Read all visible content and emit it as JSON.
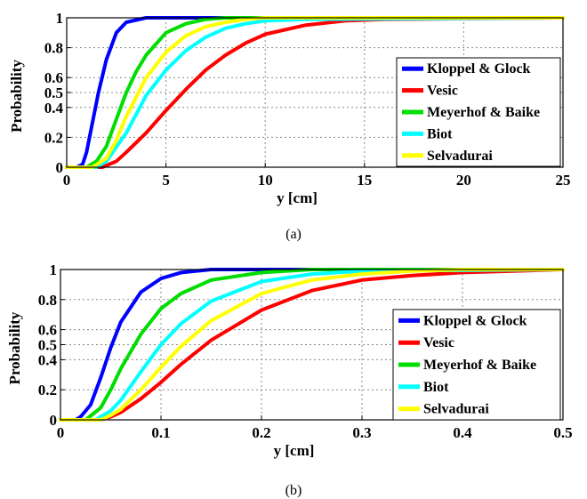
{
  "chart_data": [
    {
      "type": "line",
      "caption": "(a)",
      "xlabel": "y [cm]",
      "ylabel": "Probability",
      "xlim": [
        0,
        25
      ],
      "ylim": [
        0,
        1
      ],
      "xticks": [
        "0",
        "5",
        "10",
        "15",
        "20",
        "25"
      ],
      "yticks": [
        "0",
        "0.2",
        "0.4",
        "0.5",
        "0.6",
        "0.8",
        "1"
      ],
      "grid": true,
      "legend_position": "right",
      "series": [
        {
          "name": "Kloppel & Glock",
          "color": "#0000ff",
          "x": [
            0,
            0.5,
            0.8,
            1.0,
            1.3,
            1.6,
            2.0,
            2.5,
            3.0,
            4.0,
            5.0,
            25
          ],
          "y": [
            0,
            0.0,
            0.02,
            0.1,
            0.3,
            0.5,
            0.72,
            0.9,
            0.97,
            1.0,
            1.0,
            1.0
          ]
        },
        {
          "name": "Vesic",
          "color": "#ff0000",
          "x": [
            0,
            1.8,
            2.5,
            3.0,
            4.0,
            5.0,
            6.0,
            7.0,
            8.0,
            9.0,
            10.0,
            12.0,
            14.0,
            16.0,
            25
          ],
          "y": [
            0,
            0.0,
            0.04,
            0.1,
            0.23,
            0.38,
            0.52,
            0.65,
            0.75,
            0.83,
            0.89,
            0.95,
            0.98,
            0.99,
            1.0
          ]
        },
        {
          "name": "Meyerhof & Baike",
          "color": "#00dd00",
          "x": [
            0,
            1.0,
            1.5,
            2.0,
            2.5,
            3.0,
            3.5,
            4.0,
            5.0,
            6.0,
            7.0,
            8.0,
            25
          ],
          "y": [
            0,
            0.0,
            0.04,
            0.14,
            0.32,
            0.5,
            0.64,
            0.75,
            0.9,
            0.96,
            0.99,
            1.0,
            1.0
          ]
        },
        {
          "name": "Biot",
          "color": "#00ffff",
          "x": [
            0,
            1.5,
            2.0,
            3.0,
            4.0,
            5.0,
            6.0,
            7.0,
            8.0,
            9.0,
            10.0,
            12.0,
            25
          ],
          "y": [
            0,
            0.0,
            0.04,
            0.23,
            0.48,
            0.65,
            0.78,
            0.87,
            0.93,
            0.96,
            0.98,
            0.99,
            1.0
          ]
        },
        {
          "name": "Selvadurai",
          "color": "#ffff00",
          "x": [
            0,
            1.3,
            2.0,
            2.5,
            3.0,
            4.0,
            5.0,
            6.0,
            7.0,
            8.0,
            9.0,
            10.0,
            25
          ],
          "y": [
            0,
            0.0,
            0.06,
            0.18,
            0.34,
            0.6,
            0.77,
            0.88,
            0.94,
            0.97,
            0.99,
            1.0,
            1.0
          ]
        }
      ]
    },
    {
      "type": "line",
      "caption": "(b)",
      "xlabel": "y [cm]",
      "ylabel": "Probability",
      "xlim": [
        0,
        0.5
      ],
      "ylim": [
        0,
        1
      ],
      "xticks": [
        "0",
        "0.1",
        "0.2",
        "0.3",
        "0.4",
        "0.5"
      ],
      "yticks": [
        "0",
        "0.2",
        "0.4",
        "0.5",
        "0.6",
        "0.8",
        "1"
      ],
      "grid": true,
      "legend_position": "right",
      "series": [
        {
          "name": "Kloppel & Glock",
          "color": "#0000ff",
          "x": [
            0,
            0.015,
            0.02,
            0.03,
            0.04,
            0.05,
            0.06,
            0.08,
            0.1,
            0.12,
            0.15,
            0.5
          ],
          "y": [
            0,
            0.0,
            0.02,
            0.1,
            0.28,
            0.48,
            0.65,
            0.85,
            0.94,
            0.98,
            1.0,
            1.0
          ]
        },
        {
          "name": "Vesic",
          "color": "#ff0000",
          "x": [
            0,
            0.04,
            0.05,
            0.06,
            0.08,
            0.1,
            0.12,
            0.15,
            0.2,
            0.25,
            0.3,
            0.35,
            0.4,
            0.45,
            0.5
          ],
          "y": [
            0,
            0.0,
            0.02,
            0.05,
            0.14,
            0.25,
            0.37,
            0.53,
            0.73,
            0.86,
            0.93,
            0.96,
            0.98,
            0.99,
            1.0
          ]
        },
        {
          "name": "Meyerhof & Baike",
          "color": "#00dd00",
          "x": [
            0,
            0.025,
            0.04,
            0.05,
            0.06,
            0.08,
            0.1,
            0.12,
            0.15,
            0.2,
            0.25,
            0.5
          ],
          "y": [
            0,
            0.0,
            0.08,
            0.2,
            0.34,
            0.57,
            0.74,
            0.84,
            0.93,
            0.98,
            1.0,
            1.0
          ]
        },
        {
          "name": "Biot",
          "color": "#00ffff",
          "x": [
            0,
            0.035,
            0.05,
            0.06,
            0.08,
            0.1,
            0.12,
            0.15,
            0.2,
            0.25,
            0.3,
            0.5
          ],
          "y": [
            0,
            0.0,
            0.06,
            0.13,
            0.32,
            0.5,
            0.64,
            0.79,
            0.92,
            0.97,
            0.99,
            1.0
          ]
        },
        {
          "name": "Selvadurai",
          "color": "#ffff00",
          "x": [
            0,
            0.04,
            0.05,
            0.06,
            0.08,
            0.1,
            0.12,
            0.15,
            0.2,
            0.25,
            0.3,
            0.35,
            0.4,
            0.5
          ],
          "y": [
            0,
            0.0,
            0.03,
            0.07,
            0.2,
            0.35,
            0.49,
            0.66,
            0.84,
            0.93,
            0.97,
            0.99,
            1.0,
            1.0
          ]
        }
      ]
    }
  ]
}
